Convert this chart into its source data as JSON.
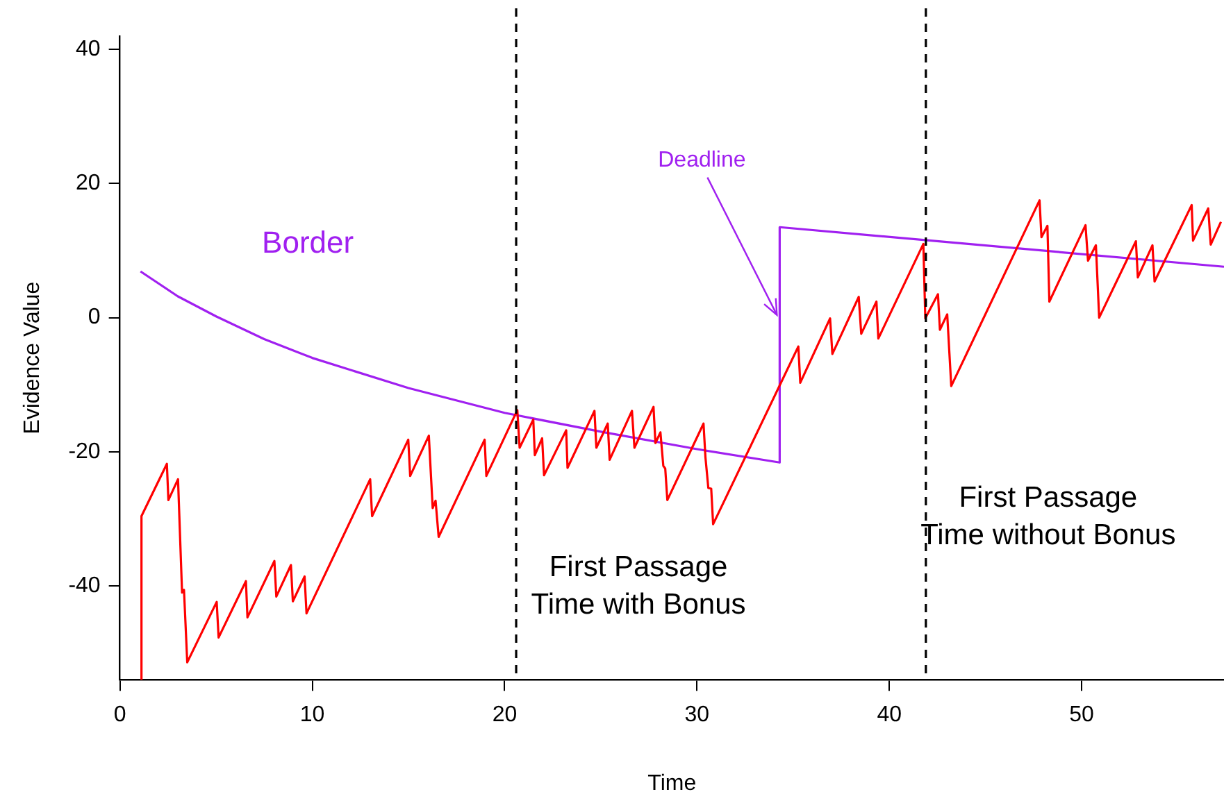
{
  "chart_data": {
    "type": "line",
    "xlabel": "Time",
    "ylabel": "Evidence Value",
    "xlim": [
      0,
      57.4
    ],
    "ylim": [
      -54,
      42
    ],
    "xticks": [
      0,
      10,
      20,
      30,
      40,
      50
    ],
    "yticks": [
      -40,
      -20,
      0,
      20,
      40
    ],
    "grid": false,
    "legend": false,
    "marker": "none",
    "line_style": "solid",
    "series": [
      {
        "color": "#ff0000",
        "x": [
          1.07,
          1.12,
          2.44,
          2.52,
          3.02,
          3.23,
          3.33,
          3.5,
          5.03,
          5.13,
          6.55,
          6.63,
          8.03,
          8.13,
          8.89,
          8.99,
          9.6,
          9.7,
          13.01,
          13.11,
          14.99,
          15.09,
          16.06,
          16.26,
          16.41,
          16.57,
          18.96,
          19.05,
          20.66,
          20.78,
          21.49,
          21.57,
          21.95,
          22.05,
          23.2,
          23.27,
          24.67,
          24.77,
          25.36,
          25.46,
          26.62,
          26.75,
          27.74,
          27.84,
          28.1,
          28.25,
          28.35,
          28.46,
          30.34,
          30.44,
          30.59,
          30.74,
          30.84,
          35.27,
          35.37,
          36.92,
          37.04,
          38.41,
          38.54,
          39.33,
          39.43,
          41.77,
          41.87,
          42.53,
          42.63,
          43.01,
          43.22,
          47.81,
          47.91,
          48.22,
          48.32,
          50.2,
          50.33,
          50.74,
          50.91,
          52.82,
          52.92,
          53.68,
          53.79,
          55.72,
          55.79,
          56.58,
          56.71,
          57.24
        ],
        "values": [
          -54,
          -29.6,
          -21.8,
          -27.2,
          -24.1,
          -41.0,
          -40.6,
          -51.4,
          -42.4,
          -47.7,
          -39.3,
          -44.7,
          -36.3,
          -41.6,
          -36.9,
          -42.3,
          -38.6,
          -44.1,
          -24.1,
          -29.6,
          -18.2,
          -23.6,
          -17.6,
          -28.4,
          -27.3,
          -32.7,
          -18.2,
          -23.6,
          -13.8,
          -19.4,
          -15.2,
          -20.5,
          -18.0,
          -23.5,
          -16.8,
          -22.4,
          -13.9,
          -19.4,
          -15.8,
          -21.2,
          -13.9,
          -19.4,
          -13.3,
          -18.7,
          -17.1,
          -22.1,
          -22.5,
          -27.2,
          -15.8,
          -20.8,
          -25.4,
          -25.5,
          -30.8,
          -4.3,
          -9.7,
          -0.1,
          -5.4,
          3.1,
          -2.4,
          2.4,
          -3.1,
          11.0,
          -0.1,
          3.5,
          -1.8,
          0.5,
          -10.2,
          17.5,
          12.0,
          13.7,
          2.4,
          13.8,
          8.5,
          10.8,
          0.0,
          11.4,
          6.0,
          10.8,
          5.4,
          16.8,
          11.5,
          16.3,
          10.9,
          14.3
        ]
      },
      {
        "name": "Border",
        "color": "#a020f0",
        "x": [
          1.07,
          3,
          5,
          7.5,
          10,
          15,
          20,
          25,
          30,
          34.3,
          34.3,
          57.4
        ],
        "values": [
          6.9,
          3.2,
          0.2,
          -3.2,
          -6.0,
          -10.5,
          -14.2,
          -17.0,
          -19.6,
          -21.6,
          13.5,
          7.6
        ]
      }
    ],
    "ref_lines": [
      {
        "axis": "x",
        "value": 20.6,
        "color": "#000000",
        "line_style": "dashed",
        "label": "First Passage\nTime with Bonus"
      },
      {
        "axis": "x",
        "value": 41.9,
        "color": "#000000",
        "line_style": "dashed",
        "label": "First Passage\nTime without Bonus"
      }
    ],
    "annotations": [
      {
        "text": "Deadline",
        "x": 34.3,
        "y": 0
      }
    ]
  }
}
